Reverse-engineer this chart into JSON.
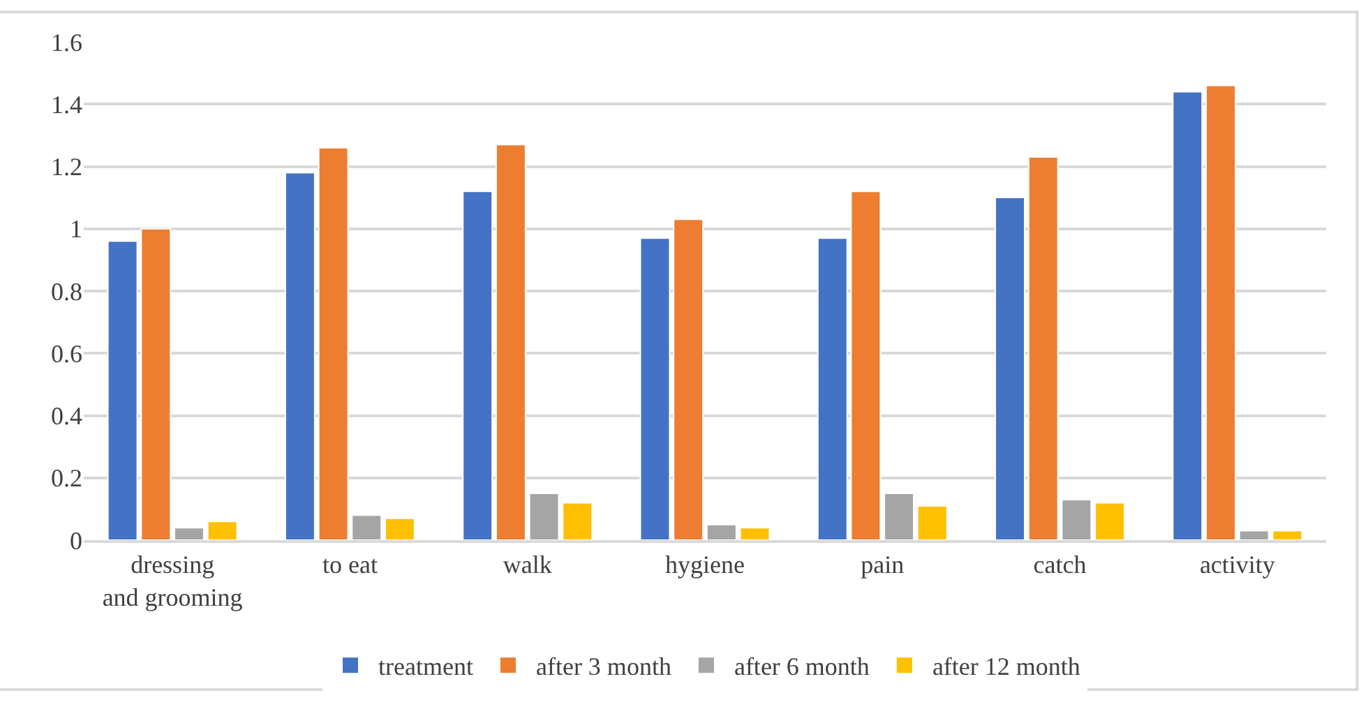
{
  "chart_data": {
    "type": "bar",
    "categories": [
      "dressing and grooming",
      "to eat",
      "walk",
      "hygiene",
      "pain",
      "catch",
      "activity"
    ],
    "series": [
      {
        "name": "treatment",
        "color": "#4472c4",
        "values": [
          0.96,
          1.18,
          1.12,
          0.97,
          0.97,
          1.1,
          1.44
        ]
      },
      {
        "name": "after 3 month",
        "color": "#ed7d31",
        "values": [
          1.0,
          1.26,
          1.27,
          1.03,
          1.12,
          1.23,
          1.46
        ]
      },
      {
        "name": "after 6 month",
        "color": "#a5a5a5",
        "values": [
          0.04,
          0.08,
          0.15,
          0.05,
          0.15,
          0.13,
          0.03
        ]
      },
      {
        "name": "after 12 month",
        "color": "#ffc000",
        "values": [
          0.06,
          0.07,
          0.12,
          0.04,
          0.11,
          0.12,
          0.03
        ]
      }
    ],
    "ylim": [
      0,
      1.6
    ],
    "yticks": [
      0,
      0.2,
      0.4,
      0.6,
      0.8,
      1,
      1.2,
      1.4,
      1.6
    ],
    "grid": "y",
    "legend": "bottom"
  }
}
